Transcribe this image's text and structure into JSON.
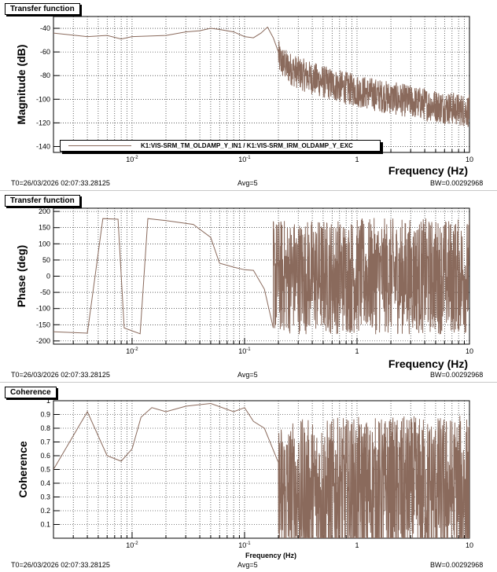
{
  "colors": {
    "trace": "#8a6a5c",
    "grid": "#000000",
    "frame": "#000000"
  },
  "chart_data": [
    {
      "type": "line",
      "panel_title": "Transfer function",
      "xlabel": "Frequency (Hz)",
      "ylabel": "Magnitude (dB)",
      "xscale": "log",
      "xlim": [
        0.002,
        10
      ],
      "ylim": [
        -145,
        -30
      ],
      "xtick_labels": [
        [
          "10^-2",
          0.01
        ],
        [
          "10^-1",
          0.1
        ],
        [
          "1",
          1
        ],
        [
          "10",
          10
        ]
      ],
      "yticks": [
        -140,
        -120,
        -100,
        -80,
        -60,
        -40
      ],
      "legend": "K1:VIS-SRM_TM_OLDAMP_Y_IN1 / K1:VIS-SRM_IRM_OLDAMP_Y_EXC",
      "footer_left": "T0=26/03/2026 02:07:33.28125",
      "footer_mid": "Avg=5",
      "footer_right": "BW=0.00292968",
      "series": [
        {
          "name": "magnitude",
          "x": [
            0.002,
            0.004,
            0.006,
            0.008,
            0.01,
            0.02,
            0.03,
            0.04,
            0.05,
            0.06,
            0.08,
            0.1,
            0.12,
            0.14,
            0.16,
            0.18,
            0.2
          ],
          "y": [
            -44,
            -47,
            -46,
            -49,
            -47,
            -46,
            -43,
            -42,
            -40,
            -41,
            -43,
            -47,
            -48,
            -44,
            -39,
            -48,
            -60
          ],
          "noise": {
            "from": 0.2,
            "to": 10,
            "start": -62,
            "end": -110,
            "spread": 14
          }
        }
      ]
    },
    {
      "type": "line",
      "panel_title": "Transfer function",
      "xlabel": "Frequency (Hz)",
      "ylabel": "Phase (deg)",
      "xscale": "log",
      "xlim": [
        0.002,
        10
      ],
      "ylim": [
        -210,
        210
      ],
      "xtick_labels": [
        [
          "10^-2",
          0.01
        ],
        [
          "10^-1",
          0.1
        ],
        [
          "1",
          1
        ],
        [
          "10",
          10
        ]
      ],
      "yticks": [
        -200,
        -150,
        -100,
        -50,
        0,
        50,
        100,
        150,
        200
      ],
      "footer_left": "T0=26/03/2026 02:07:33.28125",
      "footer_mid": "Avg=5",
      "footer_right": "BW=0.00292968",
      "series": [
        {
          "name": "phase",
          "x": [
            0.002,
            0.004,
            0.0055,
            0.0075,
            0.0085,
            0.0118,
            0.0138,
            0.02,
            0.035,
            0.05,
            0.06,
            0.08,
            0.1,
            0.12,
            0.15,
            0.18
          ],
          "y": [
            -172,
            -176,
            178,
            176,
            -160,
            -178,
            178,
            172,
            160,
            120,
            40,
            28,
            20,
            18,
            -40,
            -160
          ],
          "noise": {
            "from": 0.18,
            "to": 10,
            "start": 0,
            "end": 0,
            "spread": 180
          }
        }
      ]
    },
    {
      "type": "line",
      "panel_title": "Coherence",
      "xlabel": "Frequency (Hz)",
      "ylabel": "Coherence",
      "xscale": "log",
      "xlim": [
        0.002,
        10
      ],
      "ylim": [
        0,
        1
      ],
      "xtick_labels": [
        [
          "10^-2",
          0.01
        ],
        [
          "10^-1",
          0.1
        ],
        [
          "1",
          1
        ],
        [
          "10",
          10
        ]
      ],
      "yticks": [
        0.1,
        0.2,
        0.3,
        0.4,
        0.5,
        0.6,
        0.7,
        0.8,
        0.9,
        1
      ],
      "footer_left": "T0=26/03/2026 02:07:33.28125",
      "footer_mid": "Avg=5",
      "footer_right": "BW=0.00292968",
      "series": [
        {
          "name": "coherence",
          "x": [
            0.002,
            0.004,
            0.006,
            0.008,
            0.01,
            0.012,
            0.015,
            0.02,
            0.03,
            0.05,
            0.08,
            0.1,
            0.12,
            0.15,
            0.2
          ],
          "y": [
            0.5,
            0.92,
            0.6,
            0.56,
            0.65,
            0.88,
            0.95,
            0.92,
            0.96,
            0.98,
            0.92,
            0.95,
            0.85,
            0.8,
            0.55
          ],
          "noise": {
            "from": 0.2,
            "to": 10,
            "start": 0.3,
            "end": 0.35,
            "spread": 0.55
          }
        }
      ]
    }
  ]
}
